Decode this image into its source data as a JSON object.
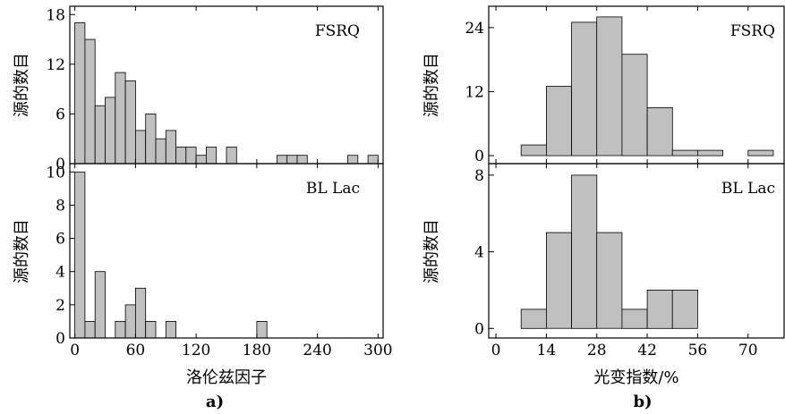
{
  "figure_labels": {
    "left": "a)",
    "right": "b)"
  },
  "chart_data": [
    {
      "type": "bar",
      "panel": "left-top",
      "title": "FSRQ",
      "ylabel": "源的数目",
      "xlabel": "",
      "bin_width": 10,
      "xlim": [
        -5,
        305
      ],
      "ylim": [
        0,
        19
      ],
      "yticks": [
        0,
        6,
        12,
        18
      ],
      "xticks": [
        0,
        60,
        120,
        180,
        240,
        300
      ],
      "x": [
        5,
        15,
        25,
        35,
        45,
        55,
        65,
        75,
        85,
        95,
        105,
        115,
        125,
        135,
        155,
        205,
        215,
        225,
        275,
        295
      ],
      "values": [
        17,
        15,
        7,
        8,
        11,
        10,
        4,
        6,
        3,
        4,
        2,
        2,
        1,
        2,
        2,
        1,
        1,
        1,
        1,
        1
      ],
      "grid": false
    },
    {
      "type": "bar",
      "panel": "left-bottom",
      "title": "BL Lac",
      "ylabel": "源的数目",
      "xlabel": "洛伦兹因子",
      "bin_width": 10,
      "xlim": [
        -5,
        305
      ],
      "ylim": [
        0,
        10.5
      ],
      "yticks": [
        0,
        2,
        4,
        6,
        8,
        10
      ],
      "xticks": [
        0,
        60,
        120,
        180,
        240,
        300
      ],
      "x": [
        5,
        15,
        25,
        45,
        55,
        65,
        75,
        95,
        185
      ],
      "values": [
        10,
        1,
        4,
        1,
        2,
        3,
        1,
        1,
        1
      ],
      "grid": false
    },
    {
      "type": "bar",
      "panel": "right-top",
      "title": "FSRQ",
      "ylabel": "源的数目",
      "xlabel": "",
      "bin_width": 7,
      "xlim": [
        -2,
        80
      ],
      "ylim": [
        -1.5,
        28
      ],
      "yticks": [
        0,
        12,
        24
      ],
      "xticks": [
        0,
        14,
        28,
        42,
        56,
        70
      ],
      "x": [
        3.5,
        10.5,
        17.5,
        24.5,
        31.5,
        38.5,
        45.5,
        52.5,
        59.5,
        66.5,
        73.5
      ],
      "values": [
        0,
        2,
        13,
        25,
        26,
        19,
        9,
        1,
        1,
        0,
        1
      ],
      "grid": false
    },
    {
      "type": "bar",
      "panel": "right-bottom",
      "title": "BL Lac",
      "ylabel": "源的数目",
      "xlabel": "光变指数/%",
      "bin_width": 7,
      "xlim": [
        -2,
        80
      ],
      "ylim": [
        -0.5,
        8.6
      ],
      "yticks": [
        0,
        4,
        8
      ],
      "xticks": [
        0,
        14,
        28,
        42,
        56,
        70
      ],
      "x": [
        3.5,
        10.5,
        17.5,
        24.5,
        31.5,
        38.5,
        45.5,
        52.5,
        59.5,
        66.5,
        73.5
      ],
      "values": [
        0,
        1,
        5,
        8,
        5,
        1,
        2,
        2,
        0,
        0,
        0
      ],
      "grid": false
    }
  ]
}
